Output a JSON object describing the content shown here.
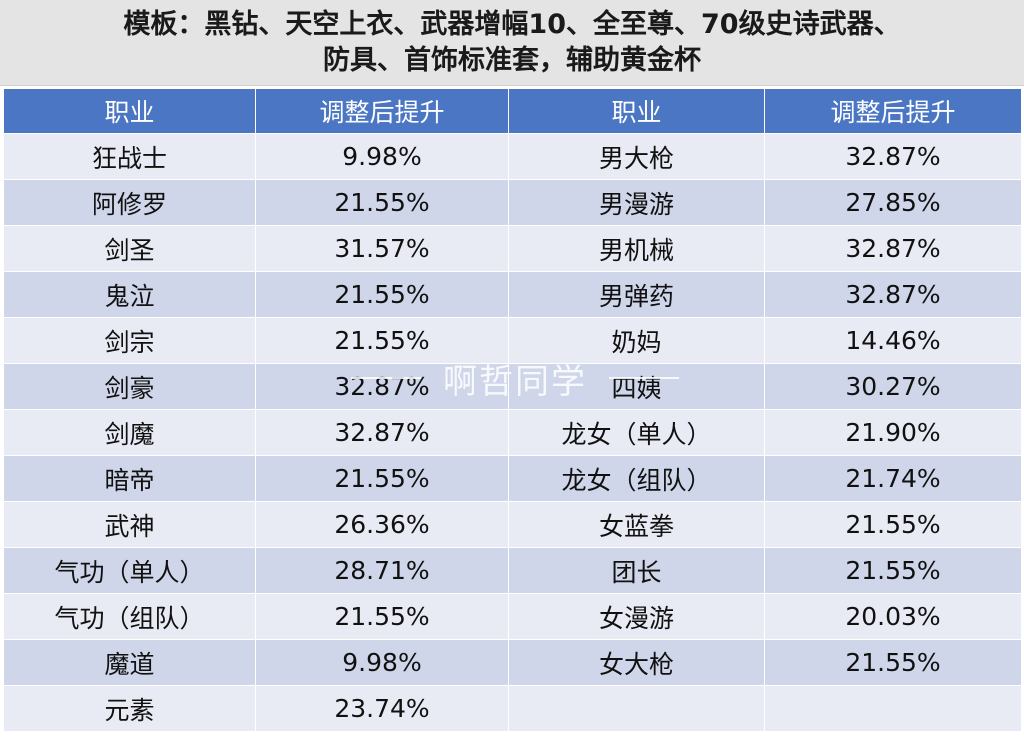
{
  "title": {
    "line1": "模板：黑钻、天空上衣、武器增幅10、全至尊、70级史诗武器、",
    "line2": "防具、首饰标准套，辅助黄金杯"
  },
  "table": {
    "headers": [
      "职业",
      "调整后提升",
      "职业",
      "调整后提升"
    ],
    "rows": [
      [
        "狂战士",
        "9.98%",
        "男大枪",
        "32.87%"
      ],
      [
        "阿修罗",
        "21.55%",
        "男漫游",
        "27.85%"
      ],
      [
        "剑圣",
        "31.57%",
        "男机械",
        "32.87%"
      ],
      [
        "鬼泣",
        "21.55%",
        "男弹药",
        "32.87%"
      ],
      [
        "剑宗",
        "21.55%",
        "奶妈",
        "14.46%"
      ],
      [
        "剑豪",
        "32.87%",
        "四姨",
        "30.27%"
      ],
      [
        "剑魔",
        "32.87%",
        "龙女（单人）",
        "21.90%"
      ],
      [
        "暗帝",
        "21.55%",
        "龙女（组队）",
        "21.74%"
      ],
      [
        "武神",
        "26.36%",
        "女蓝拳",
        "21.55%"
      ],
      [
        "气功（单人）",
        "28.71%",
        "团长",
        "21.55%"
      ],
      [
        "气功（组队）",
        "21.55%",
        "女漫游",
        "20.03%"
      ],
      [
        "魔道",
        "9.98%",
        "女大枪",
        "21.55%"
      ],
      [
        "元素",
        "23.74%",
        "",
        ""
      ]
    ]
  },
  "watermark": {
    "text": "啊哲同学"
  },
  "colors": {
    "header_bg": "#4a76c4",
    "row_light": "#e8eaf4",
    "row_dark": "#cfd6ea",
    "title_bg": "#e4e4e4"
  }
}
